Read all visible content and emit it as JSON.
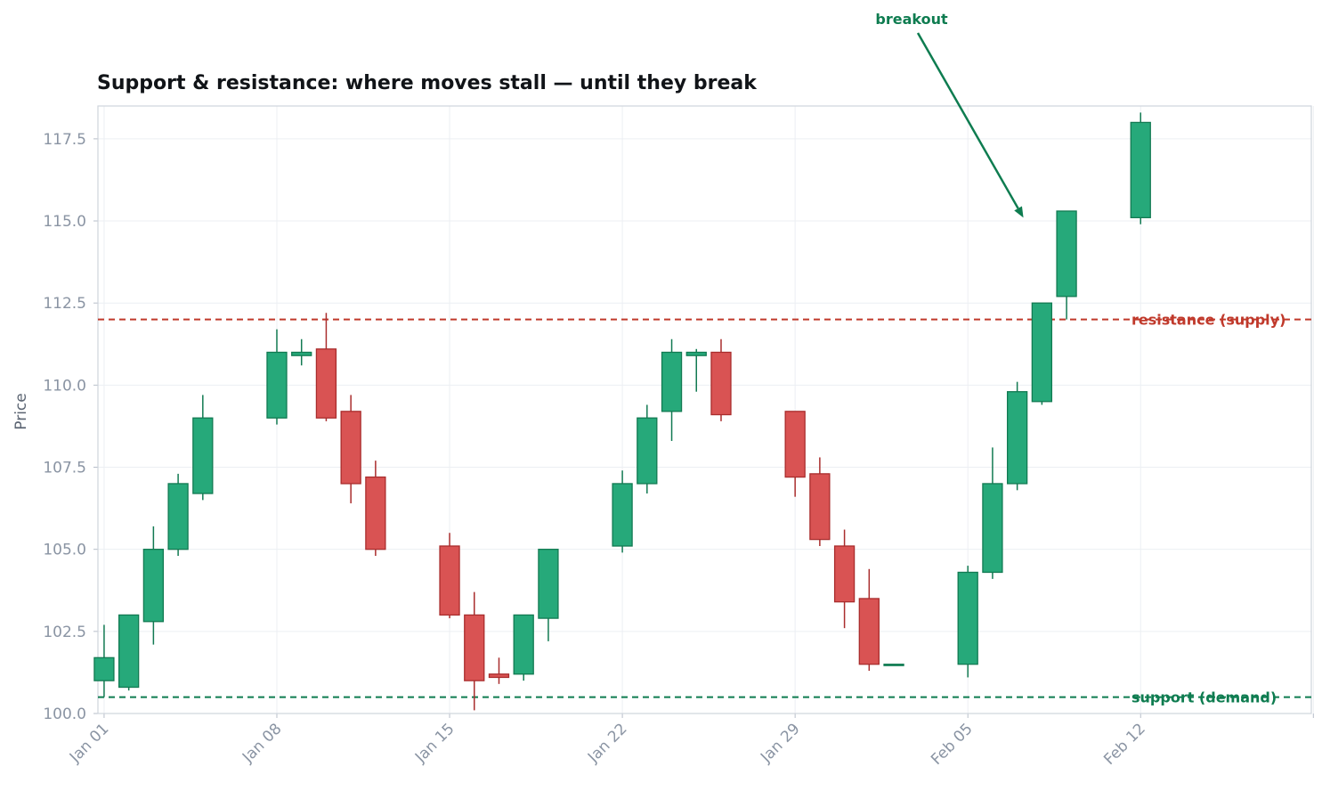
{
  "chart_data": {
    "type": "candlestick",
    "title": "Support & resistance: where moves stall — until they break",
    "xlabel": "",
    "ylabel": "Price",
    "ylim": [
      100.0,
      118.5
    ],
    "yticks": [
      100.0,
      102.5,
      105.0,
      107.5,
      110.0,
      112.5,
      115.0,
      117.5
    ],
    "ytick_labels": [
      "100.0",
      "102.5",
      "105.0",
      "107.5",
      "110.0",
      "112.5",
      "115.0",
      "117.5"
    ],
    "xlim": [
      "2023-12-31T18:00",
      "2024-02-18T22:00"
    ],
    "xticks": [
      "2024-01-01",
      "2024-01-08",
      "2024-01-15",
      "2024-01-22",
      "2024-01-29",
      "2024-02-05",
      "2024-02-12",
      "2024-02-19"
    ],
    "xtick_labels": [
      "Jan 01",
      "Jan 08",
      "Jan 15",
      "Jan 22",
      "Jan 29",
      "Feb 05",
      "Feb 12",
      ""
    ],
    "grid": true,
    "up_color": "#26a97a",
    "up_edge": "#127a52",
    "down_color": "#d95353",
    "down_edge": "#a92d2d",
    "candles": [
      {
        "date": "2024-01-01",
        "open": 101.0,
        "high": 102.7,
        "low": 100.5,
        "close": 101.7
      },
      {
        "date": "2024-01-02",
        "open": 100.8,
        "high": 103.0,
        "low": 100.7,
        "close": 103.0
      },
      {
        "date": "2024-01-03",
        "open": 102.8,
        "high": 105.7,
        "low": 102.1,
        "close": 105.0
      },
      {
        "date": "2024-01-04",
        "open": 105.0,
        "high": 107.3,
        "low": 104.8,
        "close": 107.0
      },
      {
        "date": "2024-01-05",
        "open": 106.7,
        "high": 109.7,
        "low": 106.5,
        "close": 109.0
      },
      {
        "date": "2024-01-08",
        "open": 109.0,
        "high": 111.7,
        "low": 108.8,
        "close": 111.0
      },
      {
        "date": "2024-01-09",
        "open": 110.9,
        "high": 111.4,
        "low": 110.6,
        "close": 111.0
      },
      {
        "date": "2024-01-10",
        "open": 111.1,
        "high": 112.2,
        "low": 108.9,
        "close": 109.0
      },
      {
        "date": "2024-01-11",
        "open": 109.2,
        "high": 109.7,
        "low": 106.4,
        "close": 107.0
      },
      {
        "date": "2024-01-12",
        "open": 107.2,
        "high": 107.7,
        "low": 104.8,
        "close": 105.0
      },
      {
        "date": "2024-01-15",
        "open": 105.1,
        "high": 105.5,
        "low": 102.9,
        "close": 103.0
      },
      {
        "date": "2024-01-16",
        "open": 103.0,
        "high": 103.7,
        "low": 100.1,
        "close": 101.0
      },
      {
        "date": "2024-01-17",
        "open": 101.2,
        "high": 101.7,
        "low": 100.9,
        "close": 101.1
      },
      {
        "date": "2024-01-18",
        "open": 101.2,
        "high": 103.0,
        "low": 101.0,
        "close": 103.0
      },
      {
        "date": "2024-01-19",
        "open": 102.9,
        "high": 105.0,
        "low": 102.2,
        "close": 105.0
      },
      {
        "date": "2024-01-22",
        "open": 105.1,
        "high": 107.4,
        "low": 104.9,
        "close": 107.0
      },
      {
        "date": "2024-01-23",
        "open": 107.0,
        "high": 109.4,
        "low": 106.7,
        "close": 109.0
      },
      {
        "date": "2024-01-24",
        "open": 109.2,
        "high": 111.4,
        "low": 108.3,
        "close": 111.0
      },
      {
        "date": "2024-01-25",
        "open": 110.9,
        "high": 111.1,
        "low": 109.8,
        "close": 111.0
      },
      {
        "date": "2024-01-26",
        "open": 111.0,
        "high": 111.4,
        "low": 108.9,
        "close": 109.1
      },
      {
        "date": "2024-01-29",
        "open": 109.2,
        "high": 109.2,
        "low": 106.6,
        "close": 107.2
      },
      {
        "date": "2024-01-30",
        "open": 107.3,
        "high": 107.8,
        "low": 105.1,
        "close": 105.3
      },
      {
        "date": "2024-01-31",
        "open": 105.1,
        "high": 105.6,
        "low": 102.6,
        "close": 103.4
      },
      {
        "date": "2024-02-01",
        "open": 103.5,
        "high": 104.4,
        "low": 101.3,
        "close": 101.5
      },
      {
        "date": "2024-02-02",
        "open": 101.5,
        "high": 101.5,
        "low": 101.5,
        "close": 101.5
      },
      {
        "date": "2024-02-05",
        "open": 101.5,
        "high": 104.5,
        "low": 101.1,
        "close": 104.3
      },
      {
        "date": "2024-02-06",
        "open": 104.3,
        "high": 108.1,
        "low": 104.1,
        "close": 107.0
      },
      {
        "date": "2024-02-07",
        "open": 107.0,
        "high": 110.1,
        "low": 106.8,
        "close": 109.8
      },
      {
        "date": "2024-02-08",
        "open": 109.5,
        "high": 112.5,
        "low": 109.4,
        "close": 112.5
      },
      {
        "date": "2024-02-09",
        "open": 112.7,
        "high": 115.3,
        "low": 112.0,
        "close": 115.3
      },
      {
        "date": "2024-02-12",
        "open": 115.1,
        "high": 118.3,
        "low": 114.9,
        "close": 118.0
      }
    ],
    "resistance": {
      "value": 112.0,
      "label": "resistance (supply)",
      "color": "#c0392b"
    },
    "support": {
      "value": 100.5,
      "label": "support (demand)",
      "color": "#0e7c50"
    },
    "annotation": {
      "text": "breakout",
      "color": "#0e7c50",
      "arrow_to": {
        "date": "2024-02-07T06:00",
        "value": 115.1
      }
    }
  }
}
